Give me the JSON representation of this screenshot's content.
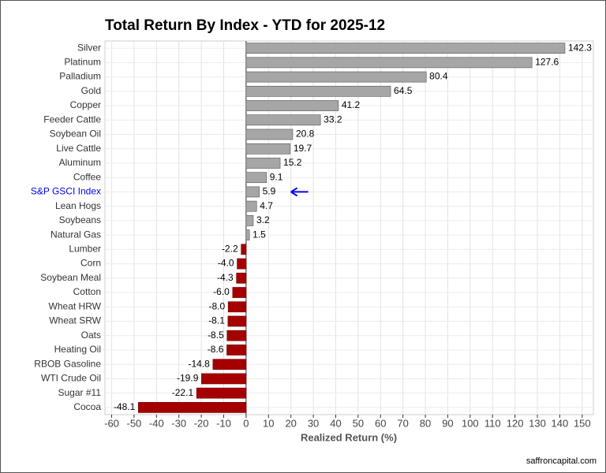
{
  "chart_data": {
    "type": "barh",
    "title": "Total Return By Index - YTD for 2025-12",
    "xlabel": "Realized Return (%)",
    "source": "saffroncapital.com",
    "categories": [
      "Silver",
      "Platinum",
      "Palladium",
      "Gold",
      "Copper",
      "Feeder Cattle",
      "Soybean Oil",
      "Live Cattle",
      "Aluminum",
      "Coffee",
      "S&P GSCI Index",
      "Lean Hogs",
      "Soybeans",
      "Natural Gas",
      "Lumber",
      "Corn",
      "Soybean Meal",
      "Cotton",
      "Wheat HRW",
      "Wheat SRW",
      "Oats",
      "Heating Oil",
      "RBOB Gasoline",
      "WTI Crude Oil",
      "Sugar #11",
      "Cocoa"
    ],
    "values": [
      142.3,
      127.6,
      80.4,
      64.5,
      41.2,
      33.2,
      20.8,
      19.7,
      15.2,
      9.1,
      5.9,
      4.7,
      3.2,
      1.5,
      -2.2,
      -4.0,
      -4.3,
      -6.0,
      -8.0,
      -8.1,
      -8.5,
      -8.6,
      -14.8,
      -19.9,
      -22.1,
      -48.1
    ],
    "value_labels": [
      "142.3",
      "127.6",
      "80.4",
      "64.5",
      "41.2",
      "33.2",
      "20.8",
      "19.7",
      "15.2",
      "9.1",
      "5.9",
      "4.7",
      "3.2",
      "1.5",
      "-2.2",
      "-4.0",
      "-4.3",
      "-6.0",
      "-8.0",
      "-8.1",
      "-8.5",
      "-8.6",
      "-14.8",
      "-19.9",
      "-22.1",
      "-48.1"
    ],
    "positive_color": "#a6a6a6",
    "negative_color": "#a50000",
    "highlight": {
      "index": 10,
      "color": "#0000ee"
    },
    "xlim": [
      -63,
      155
    ],
    "xticks": [
      -60,
      -50,
      -40,
      -30,
      -20,
      -10,
      0,
      10,
      20,
      30,
      40,
      50,
      60,
      70,
      80,
      90,
      100,
      110,
      120,
      130,
      140,
      150
    ],
    "grid": true
  }
}
